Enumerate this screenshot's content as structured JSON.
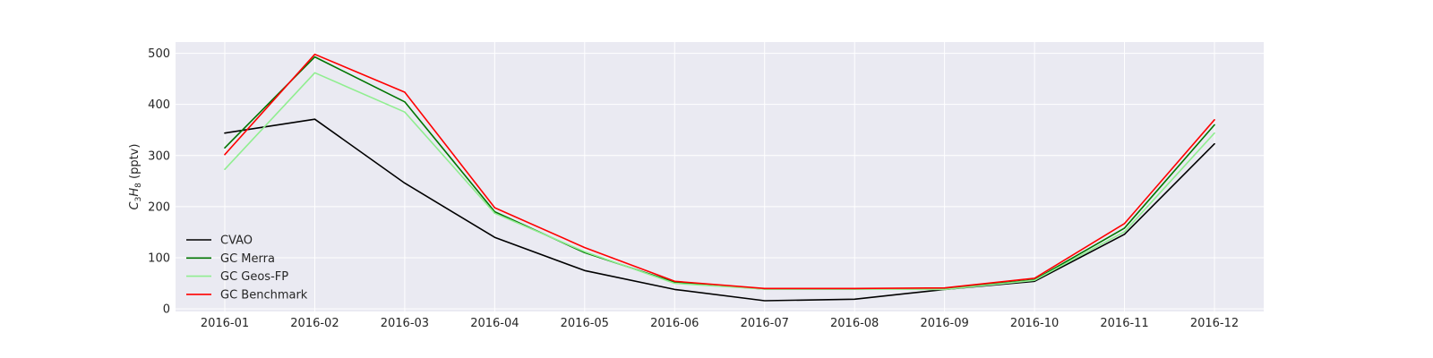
{
  "chart_data": {
    "type": "line",
    "categories": [
      "2016-01",
      "2016-02",
      "2016-03",
      "2016-04",
      "2016-05",
      "2016-06",
      "2016-07",
      "2016-08",
      "2016-09",
      "2016-10",
      "2016-11",
      "2016-12"
    ],
    "ylabel_main": "C",
    "ylabel_sub1": "3",
    "ylabel_mid": "H",
    "ylabel_sub2": "8",
    "ylabel_unit": " (pptv)",
    "ylim": [
      -5,
      522
    ],
    "yticks": [
      0,
      100,
      200,
      300,
      400,
      500
    ],
    "grid": true,
    "background": "#eaeaf2",
    "legend_position": "lower-left",
    "series": [
      {
        "name": "CVAO",
        "color": "#000000",
        "values": [
          344,
          371,
          246,
          140,
          75,
          38,
          16,
          19,
          38,
          54,
          146,
          323
        ]
      },
      {
        "name": "GC Merra",
        "color": "#007500",
        "values": [
          315,
          493,
          405,
          190,
          110,
          52,
          39,
          39,
          40,
          57,
          158,
          360
        ]
      },
      {
        "name": "GC Geos-FP",
        "color": "#90ee90",
        "values": [
          273,
          462,
          385,
          187,
          112,
          50,
          39,
          39,
          38,
          56,
          151,
          344
        ]
      },
      {
        "name": "GC Benchmark",
        "color": "#ff0000",
        "values": [
          302,
          498,
          424,
          198,
          120,
          54,
          40,
          40,
          41,
          60,
          167,
          370
        ]
      }
    ]
  }
}
